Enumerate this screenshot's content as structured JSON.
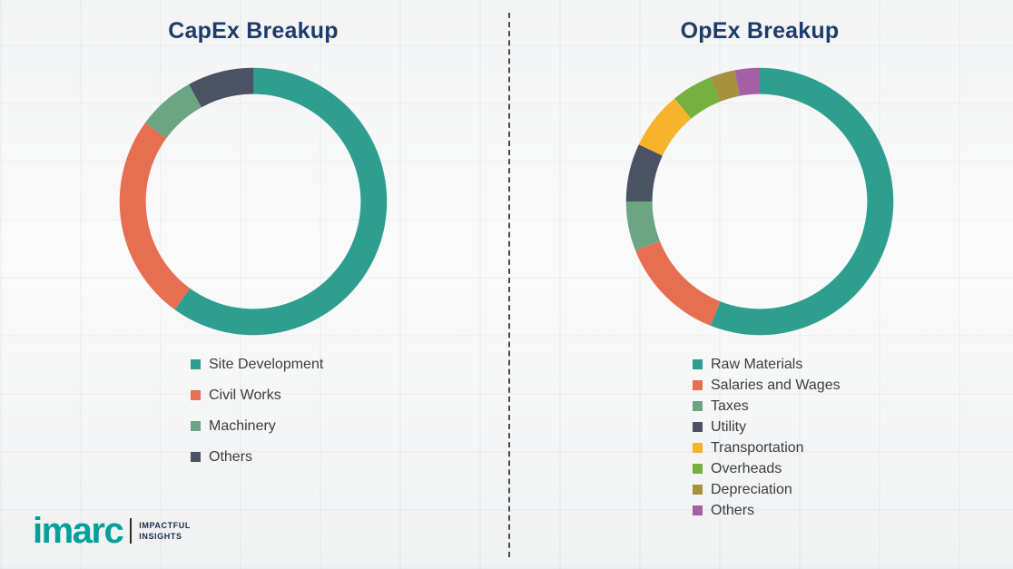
{
  "chart_data": [
    {
      "type": "pie",
      "subtype": "donut",
      "title": "CapEx Breakup",
      "legend_position": "bottom-left",
      "values_are_estimates": true,
      "note": "No numeric labels shown in image; values estimated from arc lengths (percent).",
      "segments": [
        {
          "label": "Site Development",
          "value": 60,
          "color": "#2e9e8f"
        },
        {
          "label": "Civil Works",
          "value": 25,
          "color": "#e76f51"
        },
        {
          "label": "Machinery",
          "value": 7,
          "color": "#6ba583"
        },
        {
          "label": "Others",
          "value": 8,
          "color": "#4a5264"
        }
      ]
    },
    {
      "type": "pie",
      "subtype": "donut",
      "title": "OpEx Breakup",
      "legend_position": "bottom-left",
      "values_are_estimates": true,
      "note": "No numeric labels shown in image; values estimated from arc lengths (percent).",
      "segments": [
        {
          "label": "Raw Materials",
          "value": 56,
          "color": "#2e9e8f"
        },
        {
          "label": "Salaries and Wages",
          "value": 13,
          "color": "#e76f51"
        },
        {
          "label": "Taxes",
          "value": 6,
          "color": "#6ba583"
        },
        {
          "label": "Utility",
          "value": 7,
          "color": "#4a5264"
        },
        {
          "label": "Transportation",
          "value": 7,
          "color": "#f6b32b"
        },
        {
          "label": "Overheads",
          "value": 5,
          "color": "#76b041"
        },
        {
          "label": "Depreciation",
          "value": 3,
          "color": "#a6913f"
        },
        {
          "label": "Others",
          "value": 3,
          "color": "#a55fa5"
        }
      ]
    }
  ],
  "logo": {
    "wordmark": "imarc",
    "tagline_line1": "IMPACTFUL",
    "tagline_line2": "INSIGHTS",
    "brand_color": "#00a19a"
  }
}
